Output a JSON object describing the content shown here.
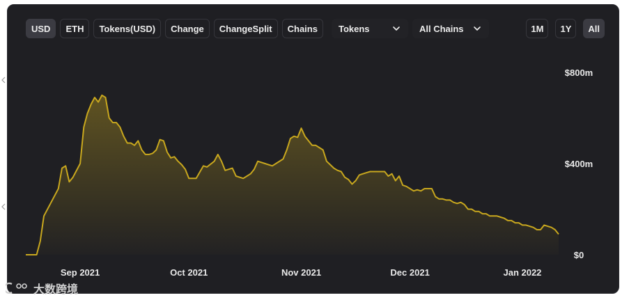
{
  "toolbar": {
    "buttons": [
      {
        "label": "USD",
        "active": true
      },
      {
        "label": "ETH",
        "active": false
      },
      {
        "label": "Tokens(USD)",
        "active": false
      },
      {
        "label": "Change",
        "active": false
      },
      {
        "label": "ChangeSplit",
        "active": false
      },
      {
        "label": "Chains",
        "active": false
      }
    ],
    "tokens_select": "Tokens",
    "chains_select": "All Chains",
    "ranges": [
      {
        "label": "1M",
        "active": false
      },
      {
        "label": "1Y",
        "active": false
      },
      {
        "label": "All",
        "active": true
      }
    ]
  },
  "watermark": {
    "text": "大数跨境",
    "logo_icon": "c-logo-icon"
  },
  "chart_data": {
    "type": "area",
    "title": "",
    "xlabel": "",
    "ylabel": "",
    "y_unit": "$",
    "y_axis_position": "right",
    "ylim": [
      0,
      800
    ],
    "yticks": [
      {
        "value": 0,
        "label": "$0"
      },
      {
        "value": 400,
        "label": "$400m"
      },
      {
        "value": 800,
        "label": "$800m"
      }
    ],
    "xlim": [
      "2021-08-17",
      "2022-01-11"
    ],
    "xticks": [
      {
        "date": "2021-09-01",
        "label": "Sep 2021"
      },
      {
        "date": "2021-10-01",
        "label": "Oct 2021"
      },
      {
        "date": "2021-11-01",
        "label": "Nov 2021"
      },
      {
        "date": "2021-12-01",
        "label": "Dec 2021"
      },
      {
        "date": "2022-01-01",
        "label": "Jan 2022"
      }
    ],
    "grid": false,
    "legend": "none",
    "line_color": "#c9a81e",
    "series": [
      {
        "name": "",
        "points": [
          [
            "2021-08-17",
            0
          ],
          [
            "2021-08-20",
            0
          ],
          [
            "2021-08-21",
            60
          ],
          [
            "2021-08-22",
            170
          ],
          [
            "2021-08-24",
            230
          ],
          [
            "2021-08-26",
            290
          ],
          [
            "2021-08-27",
            380
          ],
          [
            "2021-08-28",
            390
          ],
          [
            "2021-08-29",
            320
          ],
          [
            "2021-08-30",
            340
          ],
          [
            "2021-09-01",
            400
          ],
          [
            "2021-09-02",
            560
          ],
          [
            "2021-09-03",
            620
          ],
          [
            "2021-09-04",
            660
          ],
          [
            "2021-09-05",
            690
          ],
          [
            "2021-09-06",
            670
          ],
          [
            "2021-09-07",
            700
          ],
          [
            "2021-09-08",
            690
          ],
          [
            "2021-09-09",
            600
          ],
          [
            "2021-09-10",
            580
          ],
          [
            "2021-09-11",
            580
          ],
          [
            "2021-09-12",
            560
          ],
          [
            "2021-09-13",
            520
          ],
          [
            "2021-09-14",
            490
          ],
          [
            "2021-09-15",
            490
          ],
          [
            "2021-09-16",
            480
          ],
          [
            "2021-09-17",
            500
          ],
          [
            "2021-09-18",
            460
          ],
          [
            "2021-09-19",
            440
          ],
          [
            "2021-09-20",
            440
          ],
          [
            "2021-09-21",
            445
          ],
          [
            "2021-09-22",
            460
          ],
          [
            "2021-09-23",
            505
          ],
          [
            "2021-09-24",
            500
          ],
          [
            "2021-09-25",
            450
          ],
          [
            "2021-09-26",
            425
          ],
          [
            "2021-09-27",
            430
          ],
          [
            "2021-09-28",
            410
          ],
          [
            "2021-09-29",
            395
          ],
          [
            "2021-09-30",
            375
          ],
          [
            "2021-10-01",
            335
          ],
          [
            "2021-10-03",
            335
          ],
          [
            "2021-10-05",
            390
          ],
          [
            "2021-10-06",
            385
          ],
          [
            "2021-10-08",
            410
          ],
          [
            "2021-10-09",
            440
          ],
          [
            "2021-10-10",
            410
          ],
          [
            "2021-10-11",
            370
          ],
          [
            "2021-10-13",
            380
          ],
          [
            "2021-10-14",
            345
          ],
          [
            "2021-10-16",
            335
          ],
          [
            "2021-10-18",
            355
          ],
          [
            "2021-10-19",
            375
          ],
          [
            "2021-10-20",
            410
          ],
          [
            "2021-10-22",
            400
          ],
          [
            "2021-10-24",
            390
          ],
          [
            "2021-10-25",
            400
          ],
          [
            "2021-10-27",
            420
          ],
          [
            "2021-10-28",
            460
          ],
          [
            "2021-10-29",
            510
          ],
          [
            "2021-10-30",
            520
          ],
          [
            "2021-10-31",
            515
          ],
          [
            "2021-11-01",
            555
          ],
          [
            "2021-11-02",
            520
          ],
          [
            "2021-11-03",
            500
          ],
          [
            "2021-11-04",
            480
          ],
          [
            "2021-11-05",
            480
          ],
          [
            "2021-11-06",
            470
          ],
          [
            "2021-11-07",
            460
          ],
          [
            "2021-11-08",
            410
          ],
          [
            "2021-11-09",
            395
          ],
          [
            "2021-11-10",
            380
          ],
          [
            "2021-11-11",
            370
          ],
          [
            "2021-11-12",
            365
          ],
          [
            "2021-11-13",
            340
          ],
          [
            "2021-11-14",
            330
          ],
          [
            "2021-11-15",
            310
          ],
          [
            "2021-11-16",
            325
          ],
          [
            "2021-11-17",
            350
          ],
          [
            "2021-11-18",
            355
          ],
          [
            "2021-11-19",
            360
          ],
          [
            "2021-11-20",
            365
          ],
          [
            "2021-11-21",
            365
          ],
          [
            "2021-11-22",
            365
          ],
          [
            "2021-11-23",
            365
          ],
          [
            "2021-11-24",
            365
          ],
          [
            "2021-11-25",
            345
          ],
          [
            "2021-11-26",
            355
          ],
          [
            "2021-11-27",
            325
          ],
          [
            "2021-11-28",
            345
          ],
          [
            "2021-11-29",
            305
          ],
          [
            "2021-11-30",
            300
          ],
          [
            "2021-12-01",
            290
          ],
          [
            "2021-12-02",
            280
          ],
          [
            "2021-12-03",
            285
          ],
          [
            "2021-12-04",
            280
          ],
          [
            "2021-12-05",
            290
          ],
          [
            "2021-12-06",
            290
          ],
          [
            "2021-12-07",
            290
          ],
          [
            "2021-12-08",
            255
          ],
          [
            "2021-12-09",
            245
          ],
          [
            "2021-12-10",
            245
          ],
          [
            "2021-12-11",
            240
          ],
          [
            "2021-12-12",
            240
          ],
          [
            "2021-12-13",
            230
          ],
          [
            "2021-12-14",
            225
          ],
          [
            "2021-12-15",
            230
          ],
          [
            "2021-12-16",
            220
          ],
          [
            "2021-12-17",
            200
          ],
          [
            "2021-12-18",
            200
          ],
          [
            "2021-12-19",
            190
          ],
          [
            "2021-12-20",
            190
          ],
          [
            "2021-12-21",
            180
          ],
          [
            "2021-12-22",
            180
          ],
          [
            "2021-12-23",
            170
          ],
          [
            "2021-12-24",
            170
          ],
          [
            "2021-12-25",
            170
          ],
          [
            "2021-12-26",
            165
          ],
          [
            "2021-12-27",
            160
          ],
          [
            "2021-12-28",
            150
          ],
          [
            "2021-12-29",
            150
          ],
          [
            "2021-12-30",
            140
          ],
          [
            "2021-12-31",
            140
          ],
          [
            "2022-01-01",
            130
          ],
          [
            "2022-01-02",
            130
          ],
          [
            "2022-01-03",
            125
          ],
          [
            "2022-01-04",
            120
          ],
          [
            "2022-01-05",
            110
          ],
          [
            "2022-01-06",
            110
          ],
          [
            "2022-01-07",
            130
          ],
          [
            "2022-01-08",
            125
          ],
          [
            "2022-01-09",
            120
          ],
          [
            "2022-01-10",
            110
          ],
          [
            "2022-01-11",
            90
          ]
        ]
      }
    ]
  }
}
